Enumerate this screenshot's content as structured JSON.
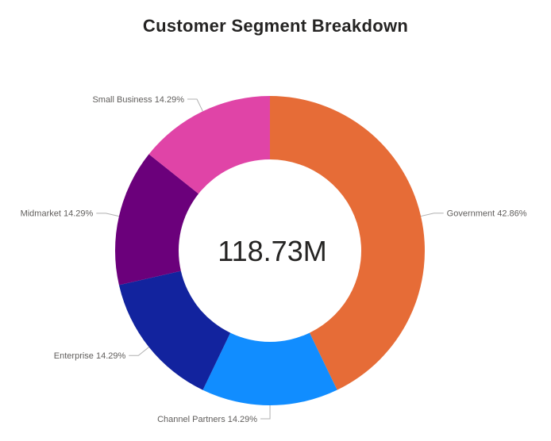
{
  "chart_data": {
    "type": "pie",
    "subtype": "donut",
    "title": "Customer Segment Breakdown",
    "center_total_label": "118.73M",
    "start_angle_deg": 0,
    "direction": "clockwise",
    "legend_position": "none",
    "label_style": "outside callouts with leader lines: category + percent of total",
    "categories": [
      "Government",
      "Channel Partners",
      "Enterprise",
      "Midmarket",
      "Small Business"
    ],
    "values_percent": [
      42.86,
      14.29,
      14.29,
      14.29,
      14.29
    ],
    "segments": [
      {
        "label": "Government",
        "percent": 42.86,
        "display": "Government 42.86%",
        "color": "#E66C37"
      },
      {
        "label": "Channel Partners",
        "percent": 14.29,
        "display": "Channel Partners 14.29%",
        "color": "#118DFF"
      },
      {
        "label": "Enterprise",
        "percent": 14.29,
        "display": "Enterprise 14.29%",
        "color": "#12239E"
      },
      {
        "label": "Midmarket",
        "percent": 14.29,
        "display": "Midmarket 14.29%",
        "color": "#6B007B"
      },
      {
        "label": "Small Business",
        "percent": 14.29,
        "display": "Small Business 14.29%",
        "color": "#E044A7"
      }
    ]
  },
  "style": {
    "background": "#ffffff",
    "title_color": "#252423",
    "center_label_color": "#252423",
    "slice_label_color": "#605E5C",
    "leader_line_color": "#b0b0b0"
  }
}
